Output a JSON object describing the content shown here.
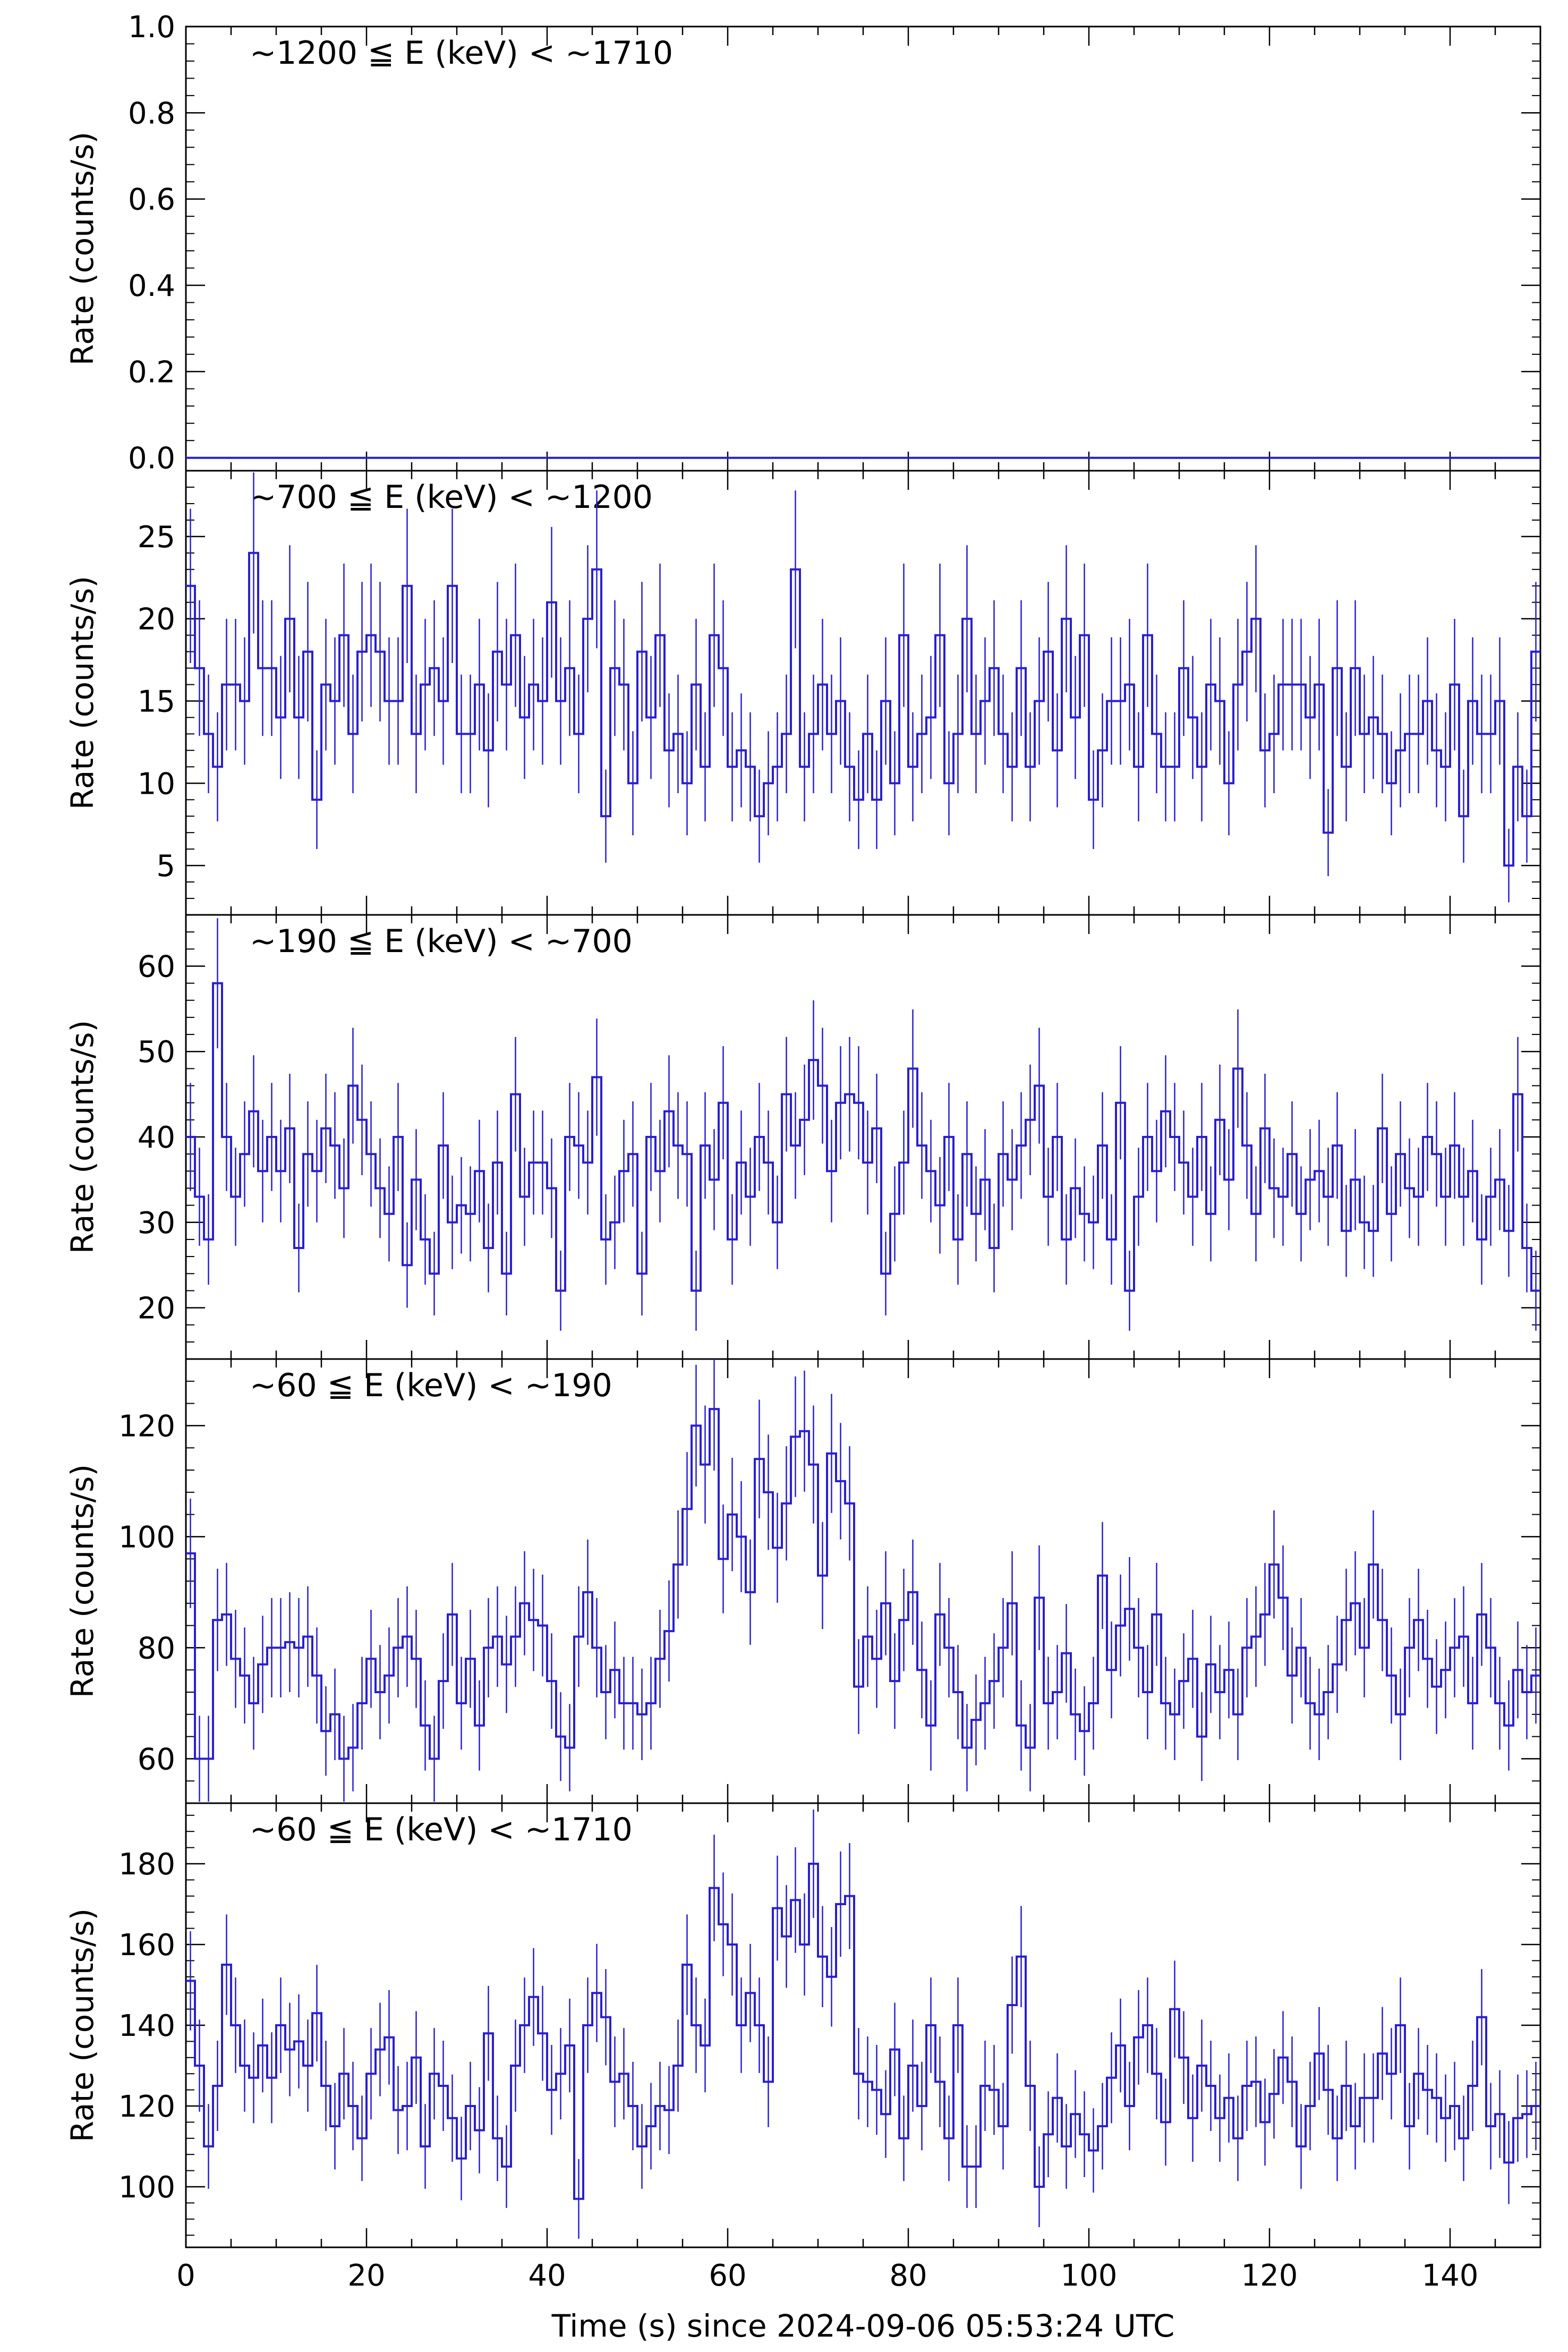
{
  "figure": {
    "xlabel": "Time (s) since 2024-09-06 05:53:24 UTC",
    "xticks": [
      "0",
      "20",
      "40",
      "60",
      "80",
      "100",
      "120",
      "140"
    ],
    "ylabel": "Rate (counts/s)",
    "colors": {
      "data": "#2a1fd1",
      "axes": "#000000"
    }
  },
  "chart_data": [
    {
      "type": "line",
      "title": "~1200 ≦ E (keV) < ~1710",
      "xlabel": "",
      "ylabel": "Rate (counts/s)",
      "xlim": [
        0,
        150
      ],
      "ylim": [
        -0.03,
        1.0
      ],
      "yticks": [
        "0.0",
        "0.2",
        "0.4",
        "0.6",
        "0.8",
        "1.0"
      ],
      "bin_width_s": 1,
      "series": [
        {
          "name": "~1200 ≦ E (keV) < ~1710",
          "start": 0,
          "values": [
            0,
            0,
            0,
            0,
            0,
            0,
            0,
            0,
            0,
            0,
            0,
            0,
            0,
            0,
            0,
            0,
            0,
            0,
            0,
            0,
            0,
            0,
            0,
            0,
            0,
            0,
            0,
            0,
            0,
            0,
            0,
            0,
            0,
            0,
            0,
            0,
            0,
            0,
            0,
            0,
            0,
            0,
            0,
            0,
            0,
            0,
            0,
            0,
            0,
            0,
            0,
            0,
            0,
            0,
            0,
            0,
            0,
            0,
            0,
            0,
            0,
            0,
            0,
            0,
            0,
            0,
            0,
            0,
            0,
            0,
            0,
            0,
            0,
            0,
            0,
            0,
            0,
            0,
            0,
            0,
            0,
            0,
            0,
            0,
            0,
            0,
            0,
            0,
            0,
            0,
            0,
            0,
            0,
            0,
            0,
            0,
            0,
            0,
            0,
            0,
            0,
            0,
            0,
            0,
            0,
            0,
            0,
            0,
            0,
            0,
            0,
            0,
            0,
            0,
            0,
            0,
            0,
            0,
            0,
            0,
            0,
            0,
            0,
            0,
            0,
            0,
            0,
            0,
            0,
            0,
            0,
            0,
            0,
            0,
            0,
            0,
            0,
            0,
            0,
            0,
            0,
            0,
            0,
            0,
            0,
            0,
            0,
            0,
            0,
            0
          ]
        }
      ]
    },
    {
      "type": "line",
      "title": "~700 ≦ E (keV) < ~1200",
      "xlabel": "",
      "ylabel": "Rate (counts/s)",
      "xlim": [
        0,
        150
      ],
      "ylim": [
        2,
        29
      ],
      "yticks": [
        "5",
        "10",
        "15",
        "20",
        "25"
      ],
      "bin_width_s": 1,
      "series": [
        {
          "name": "~700 ≦ E (keV) < ~1200",
          "start": 0,
          "values": [
            22,
            17,
            13,
            11,
            16,
            16,
            15,
            24,
            17,
            17,
            14,
            20,
            14,
            18,
            9,
            16,
            15,
            19,
            13,
            18,
            19,
            18,
            15,
            15,
            22,
            13,
            16,
            17,
            15,
            22,
            13,
            13,
            16,
            12,
            18,
            16,
            19,
            14,
            16,
            15,
            21,
            15,
            17,
            13,
            20,
            23,
            8,
            17,
            16,
            10,
            18,
            14,
            19,
            12,
            13,
            10,
            16,
            11,
            19,
            17,
            11,
            12,
            11,
            8,
            10,
            11,
            13,
            23,
            11,
            13,
            16,
            13,
            15,
            11,
            9,
            13,
            9,
            15,
            10,
            19,
            11,
            13,
            14,
            19,
            10,
            13,
            20,
            13,
            15,
            17,
            13,
            11,
            17,
            11,
            15,
            18,
            12,
            20,
            14,
            19,
            9,
            12,
            15,
            15,
            16,
            11,
            19,
            13,
            11,
            11,
            17,
            14,
            11,
            16,
            15,
            10,
            16,
            18,
            20,
            12,
            13,
            16,
            16,
            16,
            14,
            16,
            7,
            17,
            11,
            17,
            13,
            14,
            13,
            10,
            12,
            13,
            13,
            15,
            12,
            11,
            16,
            8,
            15,
            13,
            13,
            15,
            5,
            11,
            8,
            18
          ]
        }
      ]
    },
    {
      "type": "line",
      "title": "~190 ≦ E (keV) < ~700",
      "xlabel": "",
      "ylabel": "Rate (counts/s)",
      "xlim": [
        0,
        150
      ],
      "ylim": [
        14,
        66
      ],
      "yticks": [
        "20",
        "30",
        "40",
        "50",
        "60"
      ],
      "bin_width_s": 1,
      "series": [
        {
          "name": "~190 ≦ E (keV) < ~700",
          "start": 0,
          "values": [
            40,
            33,
            28,
            58,
            40,
            33,
            38,
            43,
            36,
            40,
            36,
            41,
            27,
            38,
            36,
            41,
            39,
            34,
            46,
            42,
            38,
            34,
            31,
            40,
            25,
            35,
            28,
            24,
            39,
            30,
            32,
            31,
            36,
            27,
            37,
            24,
            45,
            33,
            37,
            37,
            34,
            22,
            40,
            39,
            37,
            47,
            28,
            30,
            36,
            38,
            24,
            40,
            36,
            43,
            39,
            38,
            22,
            39,
            35,
            44,
            28,
            37,
            33,
            40,
            37,
            30,
            45,
            39,
            42,
            49,
            46,
            36,
            44,
            45,
            44,
            37,
            41,
            24,
            31,
            37,
            48,
            39,
            36,
            32,
            40,
            28,
            38,
            31,
            35,
            27,
            38,
            35,
            39,
            42,
            46,
            33,
            40,
            28,
            34,
            31,
            30,
            39,
            28,
            44,
            22,
            33,
            40,
            36,
            43,
            40,
            37,
            33,
            40,
            31,
            42,
            35,
            48,
            39,
            31,
            41,
            34,
            33,
            38,
            31,
            35,
            36,
            33,
            39,
            29,
            35,
            30,
            29,
            41,
            31,
            38,
            34,
            33,
            40,
            38,
            33,
            39,
            33,
            36,
            28,
            33,
            35,
            29,
            45,
            27,
            22
          ]
        }
      ]
    },
    {
      "type": "line",
      "title": "~60 ≦ E (keV) < ~190",
      "xlabel": "",
      "ylabel": "Rate (counts/s)",
      "xlim": [
        0,
        150
      ],
      "ylim": [
        52,
        132
      ],
      "yticks": [
        "60",
        "80",
        "100",
        "120"
      ],
      "bin_width_s": 1,
      "series": [
        {
          "name": "~60 ≦ E (keV) < ~190",
          "start": 0,
          "values": [
            97,
            60,
            60,
            85,
            86,
            78,
            75,
            70,
            77,
            80,
            80,
            81,
            80,
            82,
            75,
            65,
            68,
            60,
            62,
            70,
            78,
            72,
            75,
            80,
            82,
            78,
            66,
            60,
            74,
            86,
            70,
            78,
            66,
            80,
            82,
            77,
            82,
            88,
            85,
            84,
            74,
            64,
            62,
            82,
            90,
            80,
            72,
            76,
            70,
            70,
            68,
            70,
            78,
            83,
            95,
            105,
            120,
            113,
            123,
            96,
            104,
            100,
            90,
            114,
            108,
            98,
            106,
            118,
            119,
            113,
            93,
            115,
            110,
            106,
            73,
            82,
            78,
            88,
            74,
            85,
            90,
            76,
            66,
            86,
            80,
            72,
            62,
            67,
            70,
            74,
            80,
            88,
            66,
            62,
            89,
            70,
            72,
            79,
            68,
            65,
            70,
            93,
            76,
            84,
            87,
            80,
            72,
            86,
            70,
            68,
            74,
            78,
            64,
            77,
            72,
            76,
            68,
            80,
            82,
            86,
            95,
            89,
            75,
            80,
            70,
            68,
            72,
            77,
            85,
            88,
            80,
            95,
            85,
            75,
            68,
            80,
            85,
            78,
            73,
            76,
            80,
            82,
            70,
            86,
            80,
            70,
            66,
            76,
            72,
            75
          ]
        }
      ]
    },
    {
      "type": "line",
      "title": "~60 ≦ E (keV) < ~1710",
      "xlabel": "Time (s) since 2024-09-06 05:53:24 UTC",
      "ylabel": "Rate (counts/s)",
      "xlim": [
        0,
        150
      ],
      "ylim": [
        85,
        195
      ],
      "yticks": [
        "100",
        "120",
        "140",
        "160",
        "180"
      ],
      "bin_width_s": 1,
      "series": [
        {
          "name": "~60 ≦ E (keV) < ~1710",
          "start": 0,
          "values": [
            151,
            130,
            110,
            125,
            155,
            140,
            130,
            127,
            135,
            127,
            140,
            134,
            136,
            130,
            143,
            125,
            115,
            128,
            120,
            112,
            128,
            134,
            137,
            119,
            120,
            132,
            110,
            128,
            125,
            117,
            107,
            120,
            114,
            138,
            112,
            105,
            130,
            140,
            147,
            138,
            124,
            128,
            135,
            97,
            140,
            148,
            142,
            126,
            128,
            120,
            110,
            115,
            120,
            119,
            130,
            155,
            140,
            135,
            174,
            165,
            160,
            140,
            148,
            140,
            126,
            169,
            162,
            171,
            160,
            180,
            157,
            152,
            170,
            172,
            128,
            126,
            124,
            118,
            134,
            112,
            130,
            120,
            140,
            126,
            112,
            140,
            105,
            105,
            125,
            124,
            115,
            145,
            157,
            125,
            100,
            113,
            122,
            110,
            118,
            113,
            109,
            115,
            127,
            135,
            120,
            137,
            140,
            128,
            116,
            144,
            132,
            117,
            130,
            125,
            117,
            122,
            112,
            125,
            126,
            116,
            123,
            132,
            126,
            110,
            120,
            133,
            124,
            112,
            125,
            115,
            122,
            122,
            133,
            128,
            140,
            115,
            128,
            124,
            122,
            117,
            120,
            112,
            125,
            142,
            115,
            118,
            106,
            117,
            118,
            120
          ]
        }
      ]
    }
  ]
}
